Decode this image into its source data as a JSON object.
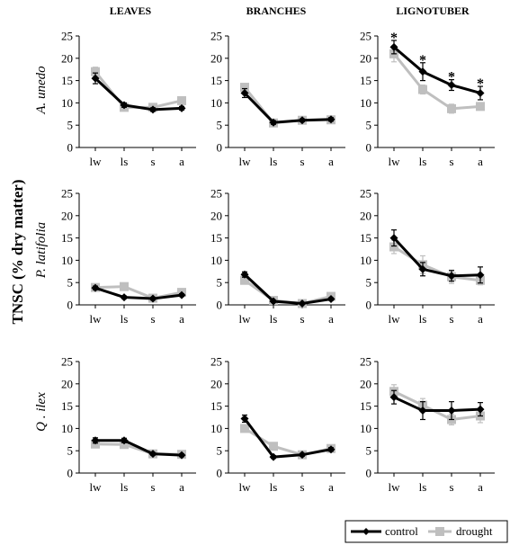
{
  "figure": {
    "y_axis_label": "TNSC (% dry matter)",
    "column_titles": [
      "LEAVES",
      "BRANCHES",
      "LIGNOTUBER"
    ],
    "row_titles": [
      "A. unedo",
      "P. latifolia",
      "Q . ilex"
    ],
    "legend": {
      "control": "control",
      "drought": "drought"
    },
    "colors": {
      "control": "#000000",
      "drought": "#bfbfbf",
      "axis": "#000000"
    },
    "significance_symbol": "*"
  },
  "chart_data": [
    {
      "type": "line",
      "row": "A. unedo",
      "column": "LEAVES",
      "categories": [
        "lw",
        "ls",
        "s",
        "a"
      ],
      "ylim": [
        0,
        25
      ],
      "yticks": [
        0,
        5,
        10,
        15,
        20,
        25
      ],
      "series": [
        {
          "name": "control",
          "values": [
            15.5,
            9.5,
            8.5,
            8.8
          ],
          "errors": [
            1.2,
            0.5,
            0.4,
            0.4
          ]
        },
        {
          "name": "drought",
          "values": [
            17,
            9,
            9,
            10.5
          ],
          "errors": [
            1,
            0.5,
            0.5,
            0.6
          ]
        }
      ],
      "significant": []
    },
    {
      "type": "line",
      "row": "A. unedo",
      "column": "BRANCHES",
      "categories": [
        "lw",
        "ls",
        "s",
        "a"
      ],
      "ylim": [
        0,
        25
      ],
      "yticks": [
        0,
        5,
        10,
        15,
        20,
        25
      ],
      "series": [
        {
          "name": "control",
          "values": [
            12.2,
            5.6,
            6.1,
            6.3
          ],
          "errors": [
            1,
            0.4,
            0.3,
            0.4
          ]
        },
        {
          "name": "drought",
          "values": [
            13.5,
            5.5,
            6.1,
            6.2
          ],
          "errors": [
            0.8,
            0.3,
            0.3,
            0.3
          ]
        }
      ],
      "significant": []
    },
    {
      "type": "line",
      "row": "A. unedo",
      "column": "LIGNOTUBER",
      "categories": [
        "lw",
        "ls",
        "s",
        "a"
      ],
      "ylim": [
        0,
        25
      ],
      "yticks": [
        0,
        5,
        10,
        15,
        20,
        25
      ],
      "series": [
        {
          "name": "control",
          "values": [
            22.5,
            17,
            14,
            12.2
          ],
          "errors": [
            1.5,
            2,
            1.2,
            1.5
          ]
        },
        {
          "name": "drought",
          "values": [
            21,
            13,
            8.7,
            9.2
          ],
          "errors": [
            1.8,
            1,
            1,
            0.6
          ]
        }
      ],
      "significant": [
        0,
        1,
        2,
        3
      ]
    },
    {
      "type": "line",
      "row": "P. latifolia",
      "column": "LEAVES",
      "categories": [
        "lw",
        "ls",
        "s",
        "a"
      ],
      "ylim": [
        0,
        25
      ],
      "yticks": [
        0,
        5,
        10,
        15,
        20,
        25
      ],
      "series": [
        {
          "name": "control",
          "values": [
            3.8,
            1.7,
            1.4,
            2.2
          ],
          "errors": [
            0.4,
            0.3,
            0.3,
            0.3
          ]
        },
        {
          "name": "drought",
          "values": [
            3.9,
            4.1,
            1.5,
            2.8
          ],
          "errors": [
            0.4,
            0.4,
            0.3,
            0.4
          ]
        }
      ],
      "significant": []
    },
    {
      "type": "line",
      "row": "P. latifolia",
      "column": "BRANCHES",
      "categories": [
        "lw",
        "ls",
        "s",
        "a"
      ],
      "ylim": [
        0,
        25
      ],
      "yticks": [
        0,
        5,
        10,
        15,
        20,
        25
      ],
      "series": [
        {
          "name": "control",
          "values": [
            6.8,
            0.8,
            0.3,
            1.3
          ],
          "errors": [
            0.6,
            0.2,
            0.1,
            0.3
          ]
        },
        {
          "name": "drought",
          "values": [
            5.5,
            1,
            0.3,
            1.9
          ],
          "errors": [
            0.5,
            0.2,
            0.1,
            0.3
          ]
        }
      ],
      "significant": []
    },
    {
      "type": "line",
      "row": "P. latifolia",
      "column": "LIGNOTUBER",
      "categories": [
        "lw",
        "ls",
        "s",
        "a"
      ],
      "ylim": [
        0,
        25
      ],
      "yticks": [
        0,
        5,
        10,
        15,
        20,
        25
      ],
      "series": [
        {
          "name": "control",
          "values": [
            15,
            8,
            6.5,
            6.7
          ],
          "errors": [
            1.8,
            1.5,
            1.2,
            1.8
          ]
        },
        {
          "name": "drought",
          "values": [
            13,
            9,
            6.3,
            5.5
          ],
          "errors": [
            1.5,
            2,
            1.5,
            1
          ]
        }
      ],
      "significant": []
    },
    {
      "type": "line",
      "row": "Q . ilex",
      "column": "LEAVES",
      "categories": [
        "lw",
        "ls",
        "s",
        "a"
      ],
      "ylim": [
        0,
        25
      ],
      "yticks": [
        0,
        5,
        10,
        15,
        20,
        25
      ],
      "series": [
        {
          "name": "control",
          "values": [
            7.3,
            7.3,
            4.3,
            4
          ],
          "errors": [
            0.6,
            0.5,
            0.3,
            0.3
          ]
        },
        {
          "name": "drought",
          "values": [
            6.5,
            6.4,
            4.3,
            4.2
          ],
          "errors": [
            0.5,
            0.5,
            0.3,
            0.3
          ]
        }
      ],
      "significant": []
    },
    {
      "type": "line",
      "row": "Q . ilex",
      "column": "BRANCHES",
      "categories": [
        "lw",
        "ls",
        "s",
        "a"
      ],
      "ylim": [
        0,
        25
      ],
      "yticks": [
        0,
        5,
        10,
        15,
        20,
        25
      ],
      "series": [
        {
          "name": "control",
          "values": [
            12.2,
            3.6,
            4.1,
            5.3
          ],
          "errors": [
            0.8,
            0.3,
            0.3,
            0.4
          ]
        },
        {
          "name": "drought",
          "values": [
            10,
            6,
            4.1,
            5.5
          ],
          "errors": [
            0.8,
            0.8,
            0.3,
            0.4
          ]
        }
      ],
      "significant": []
    },
    {
      "type": "line",
      "row": "Q . ilex",
      "column": "LIGNOTUBER",
      "categories": [
        "lw",
        "ls",
        "s",
        "a"
      ],
      "ylim": [
        0,
        25
      ],
      "yticks": [
        0,
        5,
        10,
        15,
        20,
        25
      ],
      "series": [
        {
          "name": "control",
          "values": [
            17,
            14,
            14,
            14.3
          ],
          "errors": [
            1.5,
            2,
            2,
            1.5
          ]
        },
        {
          "name": "drought",
          "values": [
            18.3,
            15.2,
            12,
            12.8
          ],
          "errors": [
            1.5,
            1.5,
            1.2,
            1.5
          ]
        }
      ],
      "significant": []
    }
  ]
}
